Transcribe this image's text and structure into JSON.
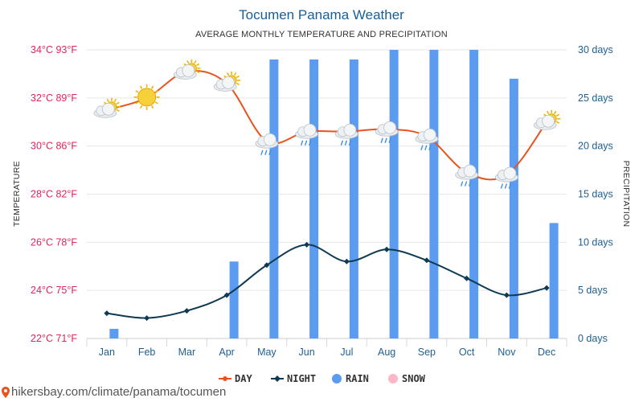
{
  "title": "Tocumen Panama Weather",
  "subtitle": "AVERAGE MONTHLY TEMPERATURE AND PRECIPITATION",
  "source": "hikersbay.com/climate/panama/tocumen",
  "chart_data": {
    "type": "bar+line",
    "categories": [
      "Jan",
      "Feb",
      "Mar",
      "Apr",
      "May",
      "Jun",
      "Jul",
      "Aug",
      "Sep",
      "Oct",
      "Nov",
      "Dec"
    ],
    "left_axis": {
      "label": "TEMPERATURE",
      "range_c": [
        22,
        34
      ],
      "ticks": [
        "22°C 71°F",
        "24°C 75°F",
        "26°C 78°F",
        "28°C 82°F",
        "30°C 86°F",
        "32°C 89°F",
        "34°C 93°F"
      ]
    },
    "right_axis": {
      "label": "PRECIPITATION",
      "range": [
        0,
        30
      ],
      "ticks": [
        "0 days",
        "5 days",
        "10 days",
        "15 days",
        "20 days",
        "25 days",
        "30 days"
      ]
    },
    "series": [
      {
        "name": "DAY",
        "type": "line",
        "axis": "left",
        "color": "#e8531f",
        "values": [
          31.5,
          32.0,
          33.1,
          32.6,
          30.2,
          30.6,
          30.6,
          30.7,
          30.4,
          28.9,
          28.8,
          31.0
        ]
      },
      {
        "name": "NIGHT",
        "type": "line",
        "axis": "left",
        "color": "#0e3a53",
        "values": [
          23.05,
          22.85,
          23.15,
          23.8,
          25.05,
          25.9,
          25.2,
          25.7,
          25.25,
          24.5,
          23.8,
          24.1
        ]
      },
      {
        "name": "RAIN",
        "type": "bar",
        "axis": "right",
        "color": "#5b9bf0",
        "values": [
          1,
          0,
          0,
          8,
          29,
          29,
          29,
          30,
          30,
          30,
          27,
          12
        ]
      },
      {
        "name": "SNOW",
        "type": "bar",
        "axis": "right",
        "color": "#ffb6c8",
        "values": [
          0,
          0,
          0,
          0,
          0,
          0,
          0,
          0,
          0,
          0,
          0,
          0
        ]
      }
    ],
    "weather_icons": [
      "partly-sunny",
      "sunny",
      "partly-sunny",
      "partly-sunny",
      "rain",
      "rain",
      "rain",
      "rain",
      "rain",
      "rain",
      "rain",
      "partly-sunny"
    ],
    "grid": true,
    "legend_position": "bottom"
  }
}
